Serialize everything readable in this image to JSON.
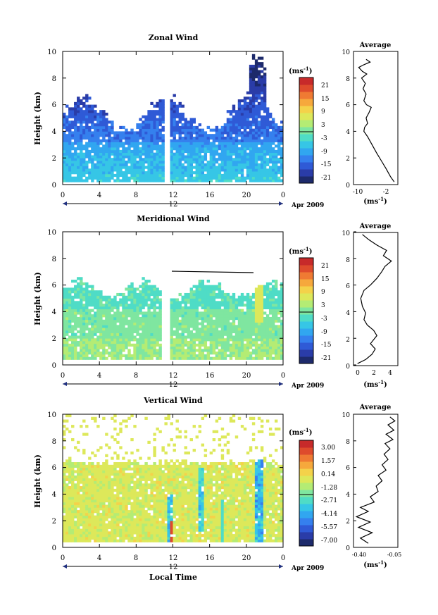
{
  "chart_data": [
    {
      "type": "heatmap",
      "title": "Zonal Wind",
      "ylabel": "Height (km)",
      "xlabel": "",
      "xlim": [
        0,
        24
      ],
      "ylim": [
        0,
        10
      ],
      "x_ticks": [
        "0",
        "4",
        "8",
        "12",
        "16",
        "20",
        "0"
      ],
      "y_ticks": [
        "0",
        "2",
        "4",
        "6",
        "8",
        "10"
      ],
      "date_tick": "12",
      "date_label": "Apr 2009",
      "colorbar": {
        "unit": "(ms",
        "unit_exp": "-1",
        "unit_close": ")",
        "ticks": [
          "21",
          "15",
          "9",
          "3",
          "-3",
          "-9",
          "-15",
          "-21"
        ],
        "range": [
          -24,
          24
        ]
      },
      "average": {
        "title": "Average",
        "xlabel": "(ms",
        "xlabel_exp": "-1",
        "xlabel_close": ")",
        "x_ticks": [
          "-10",
          "-2"
        ],
        "xlim": [
          -12,
          0
        ],
        "y_ticks": [
          "0",
          "2",
          "4",
          "6",
          "8",
          "10"
        ],
        "profile": [
          [
            -1.0,
            0.2
          ],
          [
            -2.0,
            0.6
          ],
          [
            -3.2,
            1.2
          ],
          [
            -4.5,
            1.8
          ],
          [
            -5.8,
            2.4
          ],
          [
            -7.0,
            3.0
          ],
          [
            -8.2,
            3.6
          ],
          [
            -9.2,
            4.0
          ],
          [
            -9.0,
            4.3
          ],
          [
            -8.2,
            4.6
          ],
          [
            -8.6,
            5.0
          ],
          [
            -7.8,
            5.4
          ],
          [
            -7.2,
            5.8
          ],
          [
            -8.5,
            6.0
          ],
          [
            -9.2,
            6.3
          ],
          [
            -8.6,
            6.8
          ],
          [
            -9.4,
            7.2
          ],
          [
            -8.8,
            7.6
          ],
          [
            -9.8,
            8.0
          ],
          [
            -8.4,
            8.3
          ],
          [
            -9.6,
            8.5
          ],
          [
            -10.6,
            8.8
          ],
          [
            -9.2,
            9.0
          ],
          [
            -7.5,
            9.2
          ],
          [
            -8.6,
            9.4
          ]
        ]
      }
    },
    {
      "type": "heatmap",
      "title": "Meridional Wind",
      "ylabel": "Height (km)",
      "xlabel": "",
      "xlim": [
        0,
        24
      ],
      "ylim": [
        0,
        10
      ],
      "x_ticks": [
        "0",
        "4",
        "8",
        "12",
        "16",
        "20",
        "0"
      ],
      "y_ticks": [
        "0",
        "2",
        "4",
        "6",
        "8",
        "10"
      ],
      "date_tick": "12",
      "date_label": "Apr 2009",
      "colorbar": {
        "unit": "(ms",
        "unit_exp": "-1",
        "unit_close": ")",
        "ticks": [
          "21",
          "15",
          "9",
          "3",
          "-3",
          "-9",
          "-15",
          "-21"
        ],
        "range": [
          -24,
          24
        ]
      },
      "average": {
        "title": "Average",
        "xlabel": "(ms",
        "xlabel_exp": "-1",
        "xlabel_close": ")",
        "x_ticks": [
          "0",
          "2",
          "4"
        ],
        "xlim": [
          -0.5,
          5.0
        ],
        "y_ticks": [
          "0",
          "2",
          "4",
          "6",
          "8",
          "10"
        ],
        "profile": [
          [
            0.0,
            0.1
          ],
          [
            1.0,
            0.4
          ],
          [
            1.8,
            0.8
          ],
          [
            2.2,
            1.2
          ],
          [
            1.6,
            1.6
          ],
          [
            2.4,
            2.2
          ],
          [
            2.0,
            2.6
          ],
          [
            1.2,
            3.0
          ],
          [
            0.8,
            3.4
          ],
          [
            1.0,
            3.9
          ],
          [
            0.6,
            4.4
          ],
          [
            0.4,
            5.0
          ],
          [
            0.8,
            5.6
          ],
          [
            1.6,
            6.0
          ],
          [
            2.4,
            6.5
          ],
          [
            3.0,
            7.0
          ],
          [
            3.4,
            7.4
          ],
          [
            4.2,
            7.8
          ],
          [
            3.2,
            8.2
          ],
          [
            3.6,
            8.6
          ],
          [
            2.4,
            9.0
          ],
          [
            1.4,
            9.4
          ],
          [
            0.6,
            9.8
          ]
        ]
      }
    },
    {
      "type": "heatmap",
      "title": "Vertical Wind",
      "ylabel": "Height (km)",
      "xlabel": "Local Time",
      "xlim": [
        0,
        24
      ],
      "ylim": [
        0,
        10
      ],
      "x_ticks": [
        "0",
        "4",
        "8",
        "12",
        "16",
        "20",
        "0"
      ],
      "y_ticks": [
        "0",
        "2",
        "4",
        "6",
        "8",
        "10"
      ],
      "date_tick": "12",
      "date_label": "Apr 2009",
      "colorbar": {
        "unit": "(ms",
        "unit_exp": "-1",
        "unit_close": ")",
        "ticks": [
          "3.00",
          "1.57",
          "0.14",
          "-1.28",
          "-2.71",
          "-4.14",
          "-5.57",
          "-7.00"
        ],
        "range": [
          -8.0,
          3.7
        ]
      },
      "average": {
        "title": "Average",
        "xlabel": "(ms",
        "xlabel_exp": "-1",
        "xlabel_close": ")",
        "x_ticks": [
          "-0.40",
          "-0.05"
        ],
        "xlim": [
          -0.45,
          0.0
        ],
        "y_ticks": [
          "0",
          "2",
          "4",
          "6",
          "8",
          "10"
        ],
        "profile": [
          [
            -0.3,
            0.3
          ],
          [
            -0.38,
            0.7
          ],
          [
            -0.26,
            1.1
          ],
          [
            -0.4,
            1.5
          ],
          [
            -0.28,
            1.9
          ],
          [
            -0.42,
            2.3
          ],
          [
            -0.3,
            2.7
          ],
          [
            -0.38,
            3.0
          ],
          [
            -0.24,
            3.4
          ],
          [
            -0.28,
            3.8
          ],
          [
            -0.2,
            4.2
          ],
          [
            -0.22,
            4.6
          ],
          [
            -0.16,
            5.0
          ],
          [
            -0.2,
            5.4
          ],
          [
            -0.12,
            5.8
          ],
          [
            -0.16,
            6.2
          ],
          [
            -0.1,
            6.6
          ],
          [
            -0.14,
            7.0
          ],
          [
            -0.08,
            7.4
          ],
          [
            -0.13,
            7.8
          ],
          [
            -0.05,
            8.1
          ],
          [
            -0.12,
            8.5
          ],
          [
            -0.04,
            8.8
          ],
          [
            -0.1,
            9.2
          ],
          [
            -0.03,
            9.5
          ],
          [
            -0.08,
            9.8
          ]
        ]
      }
    }
  ]
}
